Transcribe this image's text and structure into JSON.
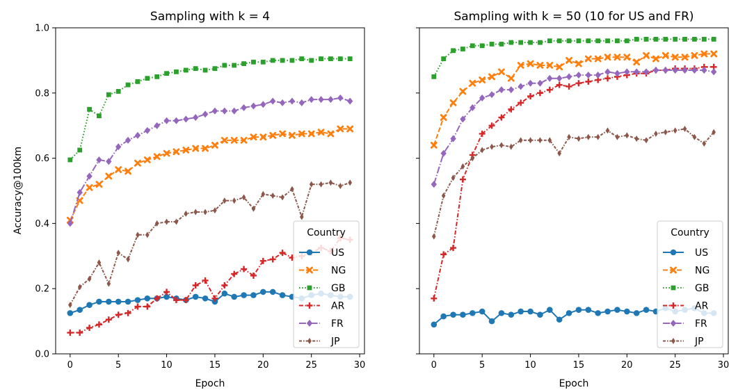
{
  "chart_data": [
    {
      "type": "line",
      "title": "Sampling with k = 4",
      "xlabel": "Epoch",
      "ylabel": "Accuracy@100km",
      "xlim": [
        -1.5,
        30.5
      ],
      "ylim": [
        0.0,
        1.0
      ],
      "xticks": [
        0,
        5,
        10,
        15,
        20,
        25,
        30
      ],
      "yticks": [
        0.0,
        0.2,
        0.4,
        0.6,
        0.8,
        1.0
      ],
      "xtick_labels": [
        "0",
        "5",
        "10",
        "15",
        "20",
        "25",
        "30"
      ],
      "ytick_labels": [
        "0.0",
        "0.2",
        "0.4",
        "0.6",
        "0.8",
        "1.0"
      ],
      "grid": false,
      "legend": {
        "title": "Country",
        "position": "lower-right"
      },
      "x": [
        0,
        1,
        2,
        3,
        4,
        5,
        6,
        7,
        8,
        9,
        10,
        11,
        12,
        13,
        14,
        15,
        16,
        17,
        18,
        19,
        20,
        21,
        22,
        23,
        24,
        25,
        26,
        27,
        28,
        29
      ],
      "series": [
        {
          "name": "US",
          "values": [
            0.125,
            0.135,
            0.15,
            0.16,
            0.16,
            0.16,
            0.16,
            0.165,
            0.17,
            0.17,
            0.175,
            0.17,
            0.165,
            0.175,
            0.17,
            0.16,
            0.185,
            0.175,
            0.18,
            0.18,
            0.19,
            0.19,
            0.18,
            0.175,
            0.17,
            0.18,
            0.185,
            0.18,
            0.175,
            0.175
          ]
        },
        {
          "name": "NG",
          "values": [
            0.41,
            0.47,
            0.51,
            0.52,
            0.545,
            0.565,
            0.56,
            0.585,
            0.595,
            0.605,
            0.615,
            0.62,
            0.625,
            0.63,
            0.63,
            0.64,
            0.655,
            0.655,
            0.655,
            0.665,
            0.665,
            0.67,
            0.675,
            0.67,
            0.675,
            0.675,
            0.68,
            0.675,
            0.69,
            0.69
          ]
        },
        {
          "name": "GB",
          "values": [
            0.595,
            0.625,
            0.75,
            0.73,
            0.795,
            0.805,
            0.825,
            0.835,
            0.845,
            0.85,
            0.86,
            0.865,
            0.87,
            0.875,
            0.87,
            0.875,
            0.885,
            0.885,
            0.89,
            0.895,
            0.895,
            0.9,
            0.9,
            0.9,
            0.905,
            0.9,
            0.905,
            0.905,
            0.905,
            0.905
          ]
        },
        {
          "name": "AR",
          "values": [
            0.065,
            0.065,
            0.08,
            0.09,
            0.105,
            0.12,
            0.125,
            0.145,
            0.145,
            0.17,
            0.19,
            0.165,
            0.165,
            0.21,
            0.225,
            0.17,
            0.21,
            0.245,
            0.26,
            0.24,
            0.285,
            0.29,
            0.31,
            0.295,
            0.3,
            0.31,
            0.325,
            0.315,
            0.355,
            0.35
          ]
        },
        {
          "name": "FR",
          "values": [
            0.4,
            0.495,
            0.545,
            0.595,
            0.59,
            0.635,
            0.655,
            0.67,
            0.685,
            0.7,
            0.715,
            0.715,
            0.72,
            0.725,
            0.735,
            0.745,
            0.745,
            0.745,
            0.755,
            0.76,
            0.765,
            0.775,
            0.77,
            0.775,
            0.77,
            0.78,
            0.78,
            0.78,
            0.785,
            0.775
          ]
        },
        {
          "name": "JP",
          "values": [
            0.15,
            0.205,
            0.23,
            0.28,
            0.215,
            0.31,
            0.29,
            0.365,
            0.365,
            0.4,
            0.405,
            0.405,
            0.43,
            0.435,
            0.435,
            0.44,
            0.47,
            0.47,
            0.48,
            0.445,
            0.49,
            0.485,
            0.48,
            0.505,
            0.42,
            0.52,
            0.52,
            0.525,
            0.515,
            0.525
          ]
        }
      ]
    },
    {
      "type": "line",
      "title": "Sampling with k = 50 (10 for US and FR)",
      "xlabel": "Epoch",
      "ylabel": "",
      "xlim": [
        -1.5,
        30.5
      ],
      "ylim": [
        0.0,
        1.0
      ],
      "xticks": [
        0,
        5,
        10,
        15,
        20,
        25,
        30
      ],
      "yticks": [
        0.0,
        0.2,
        0.4,
        0.6,
        0.8,
        1.0
      ],
      "xtick_labels": [
        "0",
        "5",
        "10",
        "15",
        "20",
        "25",
        "30"
      ],
      "ytick_labels": [],
      "grid": false,
      "legend": {
        "title": "Country",
        "position": "lower-right"
      },
      "x": [
        0,
        1,
        2,
        3,
        4,
        5,
        6,
        7,
        8,
        9,
        10,
        11,
        12,
        13,
        14,
        15,
        16,
        17,
        18,
        19,
        20,
        21,
        22,
        23,
        24,
        25,
        26,
        27,
        28,
        29
      ],
      "series": [
        {
          "name": "US",
          "values": [
            0.09,
            0.115,
            0.12,
            0.12,
            0.125,
            0.13,
            0.1,
            0.125,
            0.12,
            0.13,
            0.13,
            0.12,
            0.135,
            0.105,
            0.125,
            0.135,
            0.135,
            0.125,
            0.13,
            0.135,
            0.13,
            0.125,
            0.135,
            0.13,
            0.14,
            0.13,
            0.135,
            0.14,
            0.125,
            0.125
          ]
        },
        {
          "name": "NG",
          "values": [
            0.64,
            0.725,
            0.77,
            0.805,
            0.83,
            0.84,
            0.85,
            0.865,
            0.845,
            0.885,
            0.89,
            0.885,
            0.885,
            0.88,
            0.9,
            0.89,
            0.905,
            0.905,
            0.91,
            0.91,
            0.91,
            0.895,
            0.915,
            0.905,
            0.915,
            0.91,
            0.91,
            0.915,
            0.92,
            0.92
          ]
        },
        {
          "name": "GB",
          "values": [
            0.85,
            0.905,
            0.93,
            0.935,
            0.945,
            0.945,
            0.95,
            0.95,
            0.955,
            0.955,
            0.955,
            0.955,
            0.96,
            0.96,
            0.96,
            0.96,
            0.96,
            0.96,
            0.96,
            0.96,
            0.96,
            0.965,
            0.965,
            0.965,
            0.965,
            0.965,
            0.965,
            0.965,
            0.965,
            0.965
          ]
        },
        {
          "name": "AR",
          "values": [
            0.17,
            0.305,
            0.325,
            0.535,
            0.61,
            0.675,
            0.7,
            0.725,
            0.75,
            0.77,
            0.79,
            0.8,
            0.81,
            0.825,
            0.82,
            0.83,
            0.835,
            0.84,
            0.845,
            0.85,
            0.855,
            0.86,
            0.86,
            0.87,
            0.87,
            0.875,
            0.875,
            0.875,
            0.88,
            0.88
          ]
        },
        {
          "name": "FR",
          "values": [
            0.52,
            0.615,
            0.66,
            0.72,
            0.755,
            0.785,
            0.795,
            0.81,
            0.81,
            0.82,
            0.83,
            0.83,
            0.845,
            0.845,
            0.85,
            0.855,
            0.855,
            0.855,
            0.865,
            0.86,
            0.865,
            0.865,
            0.865,
            0.87,
            0.87,
            0.87,
            0.87,
            0.87,
            0.87,
            0.865
          ]
        },
        {
          "name": "JP",
          "values": [
            0.36,
            0.485,
            0.54,
            0.575,
            0.6,
            0.625,
            0.635,
            0.64,
            0.635,
            0.655,
            0.655,
            0.655,
            0.655,
            0.615,
            0.665,
            0.66,
            0.665,
            0.665,
            0.685,
            0.665,
            0.67,
            0.66,
            0.655,
            0.675,
            0.68,
            0.685,
            0.69,
            0.665,
            0.645,
            0.68
          ]
        }
      ]
    }
  ],
  "style": {
    "colors": {
      "US": "#1f77b4",
      "NG": "#ff7f0e",
      "GB": "#2ca02c",
      "AR": "#d62728",
      "FR": "#9467bd",
      "JP": "#8c564b"
    },
    "dashes": {
      "US": "solid",
      "NG": "dashed",
      "GB": "dotted",
      "AR": "dashdot",
      "FR": "longdashdot",
      "JP": "densedashdot"
    },
    "markers": {
      "US": "circle",
      "NG": "x-marker",
      "GB": "square",
      "AR": "plus",
      "FR": "diamond",
      "JP": "thin-diamond"
    }
  }
}
